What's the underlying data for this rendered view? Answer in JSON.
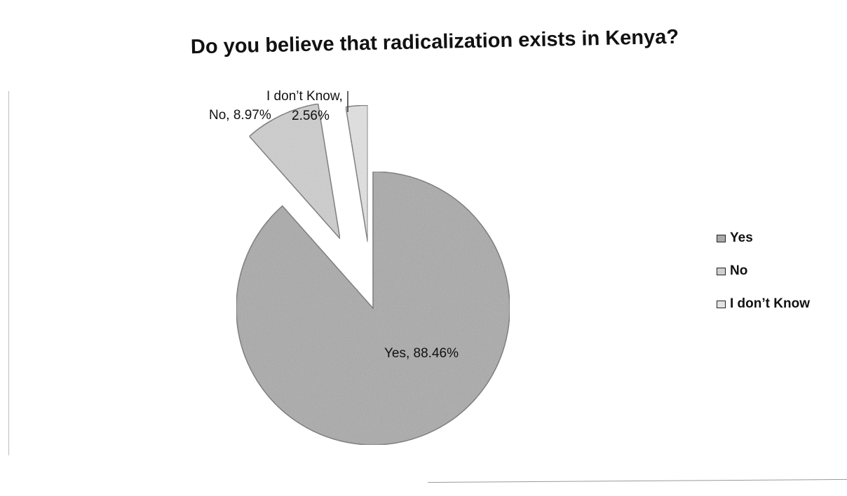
{
  "chart_data": {
    "type": "pie",
    "title": "Do you believe that radicalization exists in Kenya?",
    "categories": [
      "Yes",
      "No",
      "I don't Know"
    ],
    "values": [
      88.46,
      8.97,
      2.56
    ],
    "data_labels": [
      "Yes, 88.46%",
      "No, 8.97%",
      "I don’t Know, 2.56%"
    ],
    "label_lines": {
      "yes": "Yes, 88.46%",
      "no": "No, 8.97%",
      "idk_line1": "I don’t Know,",
      "idk_line2": "2.56%"
    },
    "legend": {
      "placement": "right",
      "entries": [
        "Yes",
        "No",
        "I don’t Know"
      ]
    },
    "exploded": [
      "No",
      "I don't Know"
    ],
    "colors": {
      "Yes": "#a9a9a9",
      "No": "#cfcfcf",
      "I don't Know": "#e3e3e3",
      "outline": "#6e6e6e"
    }
  }
}
